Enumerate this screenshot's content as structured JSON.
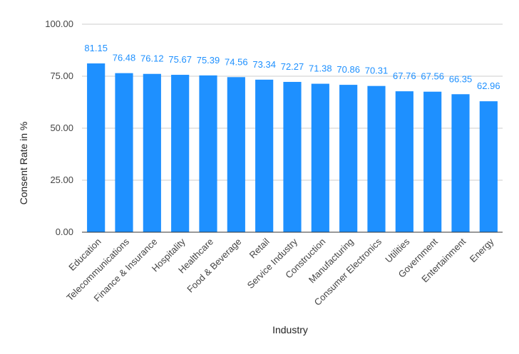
{
  "chart_data": {
    "type": "bar",
    "categories": [
      "Education",
      "Telecommunications",
      "Finance & Insurance",
      "Hospitality",
      "Healthcare",
      "Food & Beverage",
      "Retail",
      "Service Industry",
      "Construction",
      "Manufacturing",
      "Consumer Electronics",
      "Utilities",
      "Government",
      "Entertainment",
      "Energy"
    ],
    "values": [
      81.15,
      76.48,
      76.12,
      75.67,
      75.39,
      74.56,
      73.34,
      72.27,
      71.38,
      70.86,
      70.31,
      67.76,
      67.56,
      66.35,
      62.96
    ],
    "data_labels": [
      "81.15",
      "76.48",
      "76.12",
      "75.67",
      "75.39",
      "74.56",
      "73.34",
      "72.27",
      "71.38",
      "70.86",
      "70.31",
      "67.76",
      "67.56",
      "66.35",
      "62.96"
    ],
    "yticks": [
      0,
      25,
      50,
      75,
      100
    ],
    "ytick_labels": [
      "0.00",
      "25.00",
      "50.00",
      "75.00",
      "100.00"
    ],
    "ylim": [
      0,
      100
    ],
    "xlabel": "Industry",
    "ylabel": "Consent Rate in %",
    "grid": true,
    "legend": "none",
    "colors": {
      "bar": "#1E90FF",
      "data_label": "#1E90FF"
    }
  }
}
